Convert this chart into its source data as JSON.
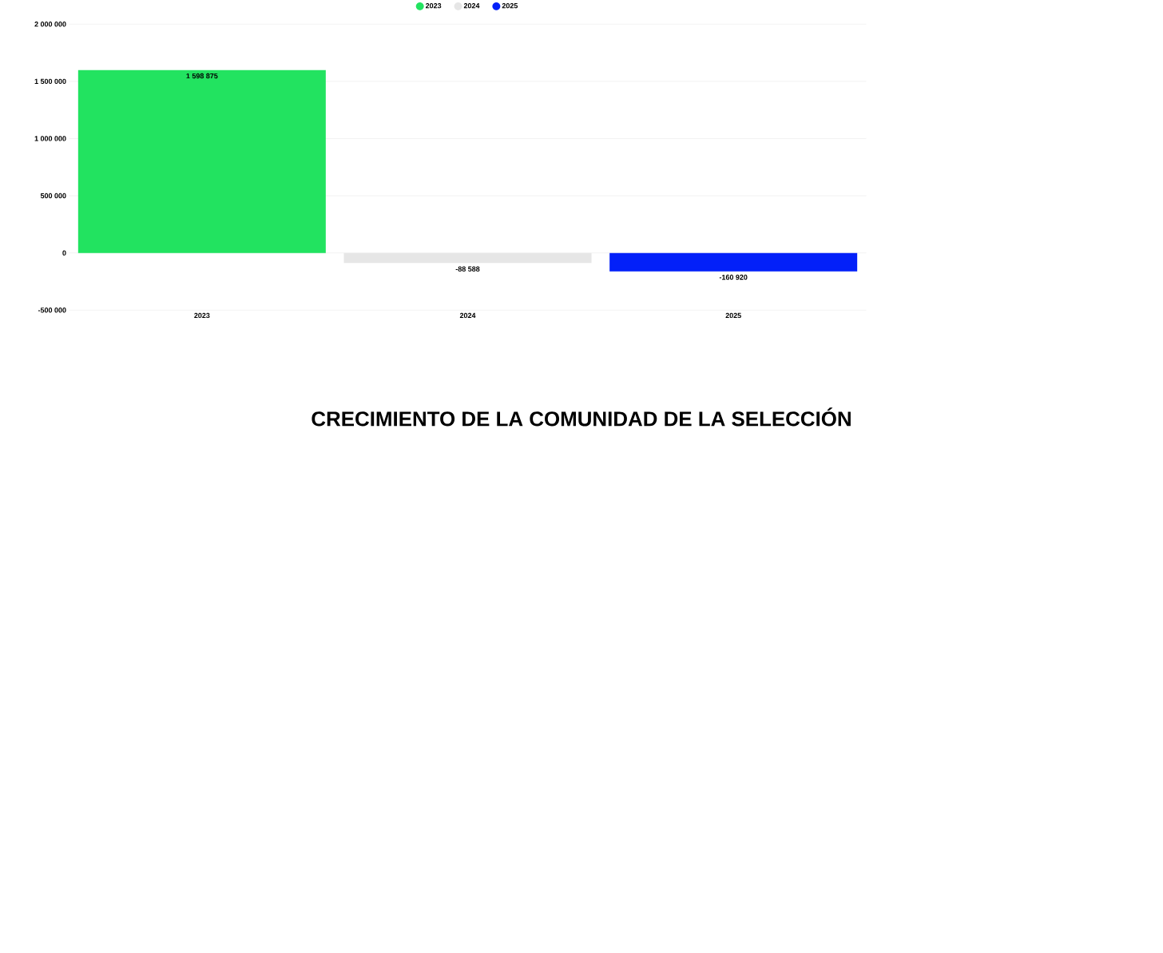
{
  "chart_data": {
    "type": "bar",
    "title": "CRECIMIENTO DE LA COMUNIDAD DE LA SELECCIÓN",
    "categories": [
      "2023",
      "2024",
      "2025"
    ],
    "series": [
      {
        "name": "2023",
        "color": "#22e360",
        "values": [
          1598875,
          null,
          null
        ],
        "value_labels": [
          "1 598 875",
          null,
          null
        ]
      },
      {
        "name": "2024",
        "color": "#e6e6e6",
        "values": [
          null,
          -88588,
          null
        ],
        "value_labels": [
          null,
          "-88 588",
          null
        ]
      },
      {
        "name": "2025",
        "color": "#0320f9",
        "values": [
          null,
          null,
          -160920
        ],
        "value_labels": [
          null,
          null,
          "-160 920"
        ]
      }
    ],
    "ylim": [
      -500000,
      2000000
    ],
    "yticks": [
      {
        "value": -500000,
        "label": "-500 000"
      },
      0,
      {
        "value": 500000,
        "label": "500 000"
      },
      {
        "value": 1000000,
        "label": "1 000 000"
      },
      {
        "value": 1500000,
        "label": "1 500 000"
      },
      {
        "value": 2000000,
        "label": "2 000 000"
      }
    ],
    "grid": "y",
    "legend": "top"
  }
}
